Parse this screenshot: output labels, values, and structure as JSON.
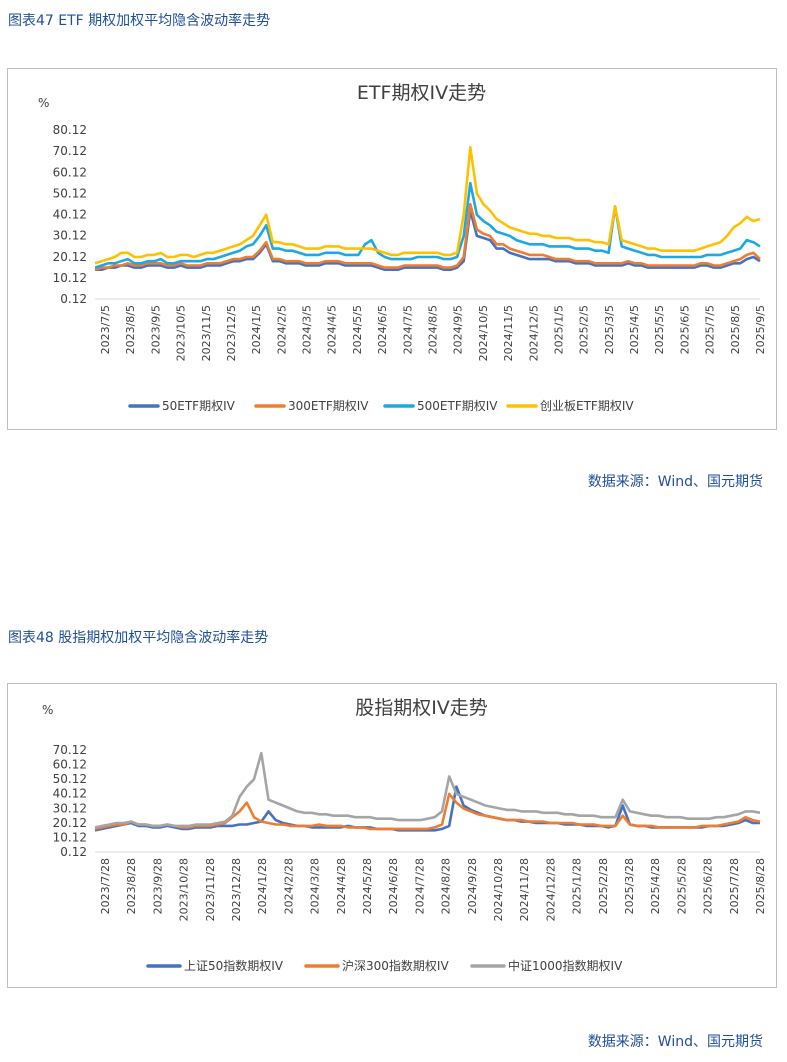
{
  "figure1": {
    "caption": "图表47 ETF 期权加权平均隐含波动率走势",
    "source": "数据来源：Wind、国元期货"
  },
  "figure2": {
    "caption": "图表48 股指期权加权平均隐含波动率走势",
    "source": "数据来源：Wind、国元期货"
  },
  "chart_data": [
    {
      "type": "line",
      "title": "ETF期权IV走势",
      "ylabel": "%",
      "ylim": [
        0.12,
        80.12
      ],
      "yticks": [
        "0.12",
        "10.12",
        "20.12",
        "30.12",
        "40.12",
        "50.12",
        "60.12",
        "70.12",
        "80.12"
      ],
      "xticks": [
        "2023/7/5",
        "2023/8/5",
        "2023/9/5",
        "2023/10/5",
        "2023/11/5",
        "2023/12/5",
        "2024/1/5",
        "2024/2/5",
        "2024/3/5",
        "2024/4/5",
        "2024/5/5",
        "2024/6/5",
        "2024/7/5",
        "2024/8/5",
        "2024/9/5",
        "2024/10/5",
        "2024/11/5",
        "2024/12/5",
        "2025/1/5",
        "2025/2/5",
        "2025/3/5",
        "2025/4/5",
        "2025/5/5",
        "2025/6/5",
        "2025/7/5",
        "2025/8/5",
        "2025/9/5"
      ],
      "legend_position": "bottom",
      "series": [
        {
          "name": "50ETF期权IV",
          "color": "#4472c4",
          "values": [
            14,
            14,
            15,
            15,
            16,
            16,
            15,
            15,
            16,
            16,
            16,
            15,
            15,
            16,
            15,
            15,
            15,
            16,
            16,
            16,
            17,
            18,
            18,
            19,
            19,
            22,
            26,
            18,
            18,
            17,
            17,
            17,
            16,
            16,
            16,
            17,
            17,
            17,
            16,
            16,
            16,
            16,
            16,
            15,
            14,
            14,
            14,
            15,
            15,
            15,
            15,
            15,
            15,
            14,
            14,
            15,
            18,
            42,
            30,
            29,
            28,
            24,
            24,
            22,
            21,
            20,
            19,
            19,
            19,
            19,
            18,
            18,
            18,
            17,
            17,
            17,
            16,
            16,
            16,
            16,
            16,
            17,
            16,
            16,
            15,
            15,
            15,
            15,
            15,
            15,
            15,
            15,
            16,
            16,
            15,
            15,
            16,
            17,
            17,
            19,
            20,
            18
          ]
        },
        {
          "name": "300ETF期权IV",
          "color": "#ed7d31",
          "values": [
            14,
            15,
            15,
            16,
            16,
            17,
            16,
            16,
            17,
            17,
            17,
            16,
            16,
            17,
            16,
            16,
            16,
            17,
            17,
            17,
            18,
            19,
            19,
            20,
            20,
            23,
            27,
            19,
            19,
            18,
            18,
            18,
            17,
            17,
            17,
            18,
            18,
            18,
            17,
            17,
            17,
            17,
            17,
            16,
            15,
            15,
            15,
            16,
            16,
            16,
            16,
            16,
            16,
            15,
            15,
            16,
            20,
            45,
            33,
            31,
            30,
            26,
            26,
            24,
            23,
            22,
            21,
            21,
            21,
            20,
            19,
            19,
            19,
            18,
            18,
            18,
            17,
            17,
            17,
            17,
            17,
            18,
            17,
            17,
            16,
            16,
            16,
            16,
            16,
            16,
            16,
            16,
            17,
            17,
            16,
            16,
            17,
            18,
            19,
            21,
            22,
            19
          ]
        },
        {
          "name": "500ETF期权IV",
          "color": "#1fa8e0",
          "values": [
            15,
            16,
            17,
            17,
            18,
            19,
            17,
            17,
            18,
            18,
            19,
            17,
            17,
            18,
            18,
            18,
            18,
            19,
            19,
            20,
            21,
            22,
            23,
            25,
            26,
            30,
            35,
            24,
            24,
            23,
            23,
            22,
            21,
            21,
            21,
            22,
            22,
            22,
            21,
            21,
            21,
            26,
            28,
            22,
            20,
            19,
            19,
            19,
            19,
            20,
            20,
            20,
            20,
            19,
            19,
            20,
            30,
            55,
            40,
            37,
            35,
            32,
            31,
            30,
            28,
            27,
            26,
            26,
            26,
            25,
            25,
            25,
            25,
            24,
            24,
            24,
            23,
            23,
            22,
            44,
            25,
            24,
            23,
            22,
            21,
            21,
            20,
            20,
            20,
            20,
            20,
            20,
            20,
            21,
            21,
            21,
            22,
            23,
            24,
            28,
            27,
            25
          ]
        },
        {
          "name": "创业板ETF期权IV",
          "color": "#ffc000",
          "values": [
            17,
            18,
            19,
            20,
            22,
            22,
            20,
            20,
            21,
            21,
            22,
            20,
            20,
            21,
            21,
            20,
            21,
            22,
            22,
            23,
            24,
            25,
            26,
            28,
            30,
            35,
            40,
            27,
            27,
            26,
            26,
            25,
            24,
            24,
            24,
            25,
            25,
            25,
            24,
            24,
            24,
            24,
            24,
            23,
            22,
            21,
            21,
            22,
            22,
            22,
            22,
            22,
            22,
            21,
            21,
            22,
            40,
            72,
            50,
            45,
            42,
            38,
            36,
            34,
            33,
            32,
            31,
            31,
            30,
            30,
            29,
            29,
            29,
            28,
            28,
            28,
            27,
            27,
            26,
            44,
            28,
            27,
            26,
            25,
            24,
            24,
            23,
            23,
            23,
            23,
            23,
            23,
            24,
            25,
            26,
            27,
            30,
            34,
            36,
            39,
            37,
            38
          ]
        }
      ]
    },
    {
      "type": "line",
      "title": "股指期权IV走势",
      "ylabel": "%",
      "ylim": [
        0.12,
        70.12
      ],
      "yticks": [
        "0.12",
        "10.12",
        "20.12",
        "30.12",
        "40.12",
        "50.12",
        "60.12",
        "70.12"
      ],
      "xticks": [
        "2023/7/28",
        "2023/8/28",
        "2023/9/28",
        "2023/10/28",
        "2023/11/28",
        "2023/12/28",
        "2024/1/28",
        "2024/2/28",
        "2024/3/28",
        "2024/4/28",
        "2024/5/28",
        "2024/6/28",
        "2024/7/28",
        "2024/8/28",
        "2024/9/28",
        "2024/10/28",
        "2024/11/28",
        "2024/12/28",
        "2025/1/28",
        "2025/2/28",
        "2025/3/28",
        "2025/4/28",
        "2025/5/28",
        "2025/6/28",
        "2025/7/28",
        "2025/8/28"
      ],
      "legend_position": "bottom",
      "series": [
        {
          "name": "上证50指数期权IV",
          "color": "#4472c4",
          "values": [
            15,
            16,
            17,
            18,
            19,
            20,
            18,
            18,
            17,
            17,
            18,
            17,
            16,
            16,
            17,
            17,
            17,
            18,
            18,
            18,
            19,
            19,
            20,
            21,
            28,
            22,
            20,
            19,
            18,
            18,
            17,
            17,
            17,
            17,
            17,
            18,
            17,
            17,
            17,
            16,
            16,
            16,
            15,
            15,
            15,
            15,
            15,
            15,
            16,
            18,
            45,
            32,
            29,
            27,
            25,
            24,
            23,
            22,
            22,
            21,
            21,
            20,
            20,
            20,
            20,
            19,
            19,
            19,
            18,
            18,
            18,
            17,
            18,
            32,
            19,
            18,
            18,
            17,
            17,
            17,
            17,
            17,
            17,
            17,
            17,
            18,
            18,
            18,
            19,
            20,
            22,
            20,
            20
          ]
        },
        {
          "name": "沪深300指数期权IV",
          "color": "#ed7d31",
          "values": [
            16,
            17,
            18,
            19,
            19,
            21,
            19,
            19,
            18,
            18,
            19,
            18,
            17,
            17,
            18,
            18,
            18,
            19,
            20,
            24,
            28,
            34,
            24,
            21,
            20,
            19,
            19,
            18,
            18,
            18,
            18,
            19,
            18,
            18,
            18,
            17,
            17,
            17,
            16,
            16,
            16,
            16,
            16,
            16,
            16,
            16,
            16,
            17,
            19,
            40,
            34,
            30,
            28,
            26,
            25,
            24,
            23,
            22,
            22,
            22,
            21,
            21,
            21,
            20,
            20,
            20,
            20,
            19,
            19,
            19,
            18,
            18,
            18,
            25,
            19,
            18,
            18,
            18,
            17,
            17,
            17,
            17,
            17,
            17,
            18,
            18,
            18,
            19,
            20,
            21,
            24,
            22,
            21
          ]
        },
        {
          "name": "中证1000指数期权IV",
          "color": "#a5a5a5",
          "values": [
            17,
            18,
            19,
            20,
            20,
            21,
            19,
            19,
            18,
            18,
            19,
            18,
            18,
            18,
            19,
            19,
            19,
            20,
            21,
            25,
            38,
            45,
            50,
            68,
            36,
            34,
            32,
            30,
            28,
            27,
            27,
            26,
            26,
            25,
            25,
            25,
            24,
            24,
            24,
            23,
            23,
            23,
            22,
            22,
            22,
            22,
            23,
            24,
            28,
            52,
            40,
            38,
            36,
            34,
            32,
            31,
            30,
            29,
            29,
            28,
            28,
            28,
            27,
            27,
            27,
            26,
            26,
            25,
            25,
            25,
            24,
            24,
            24,
            36,
            28,
            27,
            26,
            25,
            25,
            24,
            24,
            24,
            23,
            23,
            23,
            23,
            24,
            24,
            25,
            26,
            28,
            28,
            27
          ]
        }
      ]
    }
  ]
}
